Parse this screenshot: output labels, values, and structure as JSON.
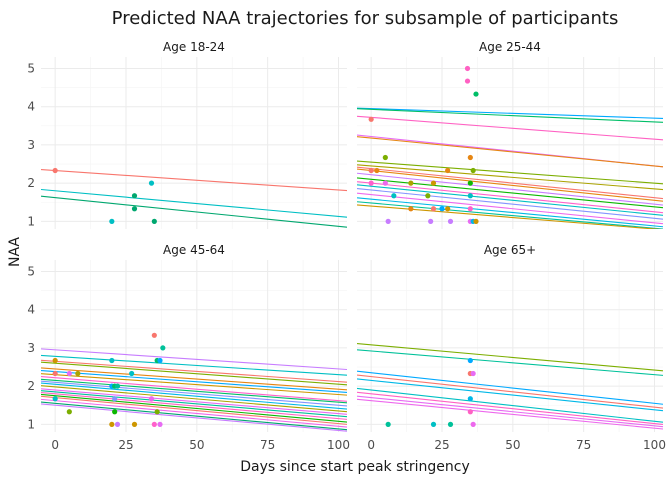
{
  "chart_data": {
    "type": "scatter",
    "title": "Predicted NAA trajectories for subsample of participants",
    "xlabel": "Days since start peak stringency",
    "ylabel": "NAA",
    "xlim": [
      -5,
      103
    ],
    "ylim": [
      0.8,
      5.3
    ],
    "x_ticks": [
      0,
      25,
      50,
      75,
      100
    ],
    "y_ticks": [
      1,
      2,
      3,
      4,
      5
    ],
    "grid": true,
    "facets": [
      {
        "label": "Age 18-24",
        "lines": [
          {
            "y0": 2.33,
            "y100": 1.82,
            "color": "#F8766D"
          },
          {
            "y0": 1.8,
            "y100": 1.13,
            "color": "#00BFC4"
          },
          {
            "y0": 1.62,
            "y100": 0.87,
            "color": "#00A76F"
          }
        ],
        "points": [
          {
            "x": 0,
            "y": 2.33,
            "color": "#F8766D"
          },
          {
            "x": 20,
            "y": 1.0,
            "color": "#00BFC4"
          },
          {
            "x": 28,
            "y": 1.67,
            "color": "#00A76F"
          },
          {
            "x": 28,
            "y": 1.33,
            "color": "#00A76F"
          },
          {
            "x": 34,
            "y": 2.0,
            "color": "#00BFC4"
          },
          {
            "x": 35,
            "y": 1.0,
            "color": "#00A76F"
          }
        ]
      },
      {
        "label": "Age 25-44",
        "lines": [
          {
            "y0": 3.95,
            "y100": 3.7,
            "color": "#00A9FF"
          },
          {
            "y0": 3.93,
            "y100": 3.6,
            "color": "#00BE67"
          },
          {
            "y0": 3.72,
            "y100": 3.15,
            "color": "#FF61C3"
          },
          {
            "y0": 3.22,
            "y100": 2.45,
            "color": "#E76BF3"
          },
          {
            "y0": 3.18,
            "y100": 2.45,
            "color": "#E68613"
          },
          {
            "y0": 2.55,
            "y100": 2.0,
            "color": "#7CAE00"
          },
          {
            "y0": 2.45,
            "y100": 1.85,
            "color": "#ABA300"
          },
          {
            "y0": 2.38,
            "y100": 1.62,
            "color": "#F8766D"
          },
          {
            "y0": 2.33,
            "y100": 1.55,
            "color": "#E68613"
          },
          {
            "y0": 2.22,
            "y100": 1.45,
            "color": "#C77CFF"
          },
          {
            "y0": 2.1,
            "y100": 1.38,
            "color": "#0CB702"
          },
          {
            "y0": 2.0,
            "y100": 1.25,
            "color": "#FF61CC"
          },
          {
            "y0": 1.92,
            "y100": 1.18,
            "color": "#00BFC4"
          },
          {
            "y0": 1.82,
            "y100": 1.08,
            "color": "#8494FF"
          },
          {
            "y0": 1.7,
            "y100": 0.96,
            "color": "#ED68ED"
          },
          {
            "y0": 1.58,
            "y100": 0.88,
            "color": "#00B8E7"
          },
          {
            "y0": 1.48,
            "y100": 0.82,
            "color": "#00C19A"
          },
          {
            "y0": 1.4,
            "y100": 0.8,
            "color": "#CD9600"
          }
        ],
        "points": [
          {
            "x": 0,
            "y": 3.67,
            "color": "#F8766D"
          },
          {
            "x": 0,
            "y": 2.33,
            "color": "#F8766D"
          },
          {
            "x": 0,
            "y": 2.0,
            "color": "#FF61CC"
          },
          {
            "x": 2,
            "y": 2.33,
            "color": "#E68613"
          },
          {
            "x": 5,
            "y": 2.67,
            "color": "#7CAE00"
          },
          {
            "x": 5,
            "y": 2.0,
            "color": "#ED68ED"
          },
          {
            "x": 6,
            "y": 1.0,
            "color": "#C77CFF"
          },
          {
            "x": 8,
            "y": 1.67,
            "color": "#00BFC4"
          },
          {
            "x": 14,
            "y": 2.0,
            "color": "#ABA300"
          },
          {
            "x": 14,
            "y": 1.33,
            "color": "#E68613"
          },
          {
            "x": 20,
            "y": 1.67,
            "color": "#7CAE00"
          },
          {
            "x": 21,
            "y": 1.0,
            "color": "#C77CFF"
          },
          {
            "x": 22,
            "y": 2.0,
            "color": "#CD9600"
          },
          {
            "x": 22,
            "y": 1.33,
            "color": "#F8766D"
          },
          {
            "x": 25,
            "y": 1.33,
            "color": "#00A9FF"
          },
          {
            "x": 27,
            "y": 2.33,
            "color": "#E68613"
          },
          {
            "x": 27,
            "y": 1.33,
            "color": "#CD9600"
          },
          {
            "x": 28,
            "y": 1.0,
            "color": "#C77CFF"
          },
          {
            "x": 34,
            "y": 4.67,
            "color": "#FF61C3"
          },
          {
            "x": 34,
            "y": 5.0,
            "color": "#FF61C3"
          },
          {
            "x": 35,
            "y": 2.67,
            "color": "#E68613"
          },
          {
            "x": 35,
            "y": 2.0,
            "color": "#0CB702"
          },
          {
            "x": 35,
            "y": 1.67,
            "color": "#00BFC4"
          },
          {
            "x": 35,
            "y": 1.33,
            "color": "#FF61CC"
          },
          {
            "x": 35,
            "y": 1.0,
            "color": "#E76BF3"
          },
          {
            "x": 36,
            "y": 2.33,
            "color": "#7CAE00"
          },
          {
            "x": 36,
            "y": 1.0,
            "color": "#00B8E7"
          },
          {
            "x": 37,
            "y": 4.33,
            "color": "#00BE67"
          },
          {
            "x": 37,
            "y": 1.0,
            "color": "#CD9600"
          }
        ]
      },
      {
        "label": "Age 45-64",
        "lines": [
          {
            "y0": 2.95,
            "y100": 2.45,
            "color": "#C77CFF"
          },
          {
            "y0": 2.78,
            "y100": 2.3,
            "color": "#00BFC4"
          },
          {
            "y0": 2.65,
            "y100": 2.12,
            "color": "#F8766D"
          },
          {
            "y0": 2.6,
            "y100": 2.05,
            "color": "#7CAE00"
          },
          {
            "y0": 2.45,
            "y100": 1.92,
            "color": "#E68613"
          },
          {
            "y0": 2.38,
            "y100": 1.85,
            "color": "#00A9FF"
          },
          {
            "y0": 2.3,
            "y100": 1.78,
            "color": "#CD9600"
          },
          {
            "y0": 2.22,
            "y100": 1.62,
            "color": "#FF61CC"
          },
          {
            "y0": 2.15,
            "y100": 1.58,
            "color": "#00BE67"
          },
          {
            "y0": 2.1,
            "y100": 1.5,
            "color": "#8494FF"
          },
          {
            "y0": 2.05,
            "y100": 1.42,
            "color": "#00B8E7"
          },
          {
            "y0": 1.98,
            "y100": 1.35,
            "color": "#ABA300"
          },
          {
            "y0": 1.9,
            "y100": 1.28,
            "color": "#E76BF3"
          },
          {
            "y0": 1.85,
            "y100": 1.22,
            "color": "#00C19A"
          },
          {
            "y0": 1.8,
            "y100": 1.15,
            "color": "#FF61C3"
          },
          {
            "y0": 1.75,
            "y100": 1.08,
            "color": "#0CB702"
          },
          {
            "y0": 1.7,
            "y100": 1.02,
            "color": "#F8766D"
          },
          {
            "y0": 1.62,
            "y100": 0.95,
            "color": "#ED68ED"
          },
          {
            "y0": 1.55,
            "y100": 0.88,
            "color": "#00A76F"
          },
          {
            "y0": 1.5,
            "y100": 0.84,
            "color": "#C77CFF"
          }
        ],
        "points": [
          {
            "x": 0,
            "y": 2.67,
            "color": "#CD9600"
          },
          {
            "x": 0,
            "y": 2.33,
            "color": "#F8766D"
          },
          {
            "x": 0,
            "y": 1.67,
            "color": "#00BFC4"
          },
          {
            "x": 5,
            "y": 2.33,
            "color": "#E76BF3"
          },
          {
            "x": 5,
            "y": 1.33,
            "color": "#7CAE00"
          },
          {
            "x": 8,
            "y": 2.33,
            "color": "#ABA300"
          },
          {
            "x": 20,
            "y": 2.67,
            "color": "#00BFC4"
          },
          {
            "x": 20,
            "y": 2.0,
            "color": "#00A9FF"
          },
          {
            "x": 20,
            "y": 1.0,
            "color": "#CD9600"
          },
          {
            "x": 21,
            "y": 2.0,
            "color": "#00BE67"
          },
          {
            "x": 21,
            "y": 1.67,
            "color": "#8494FF"
          },
          {
            "x": 21,
            "y": 1.33,
            "color": "#0CB702"
          },
          {
            "x": 22,
            "y": 2.0,
            "color": "#00C19A"
          },
          {
            "x": 22,
            "y": 1.0,
            "color": "#C77CFF"
          },
          {
            "x": 27,
            "y": 2.33,
            "color": "#00BFC4"
          },
          {
            "x": 28,
            "y": 1.0,
            "color": "#CD9600"
          },
          {
            "x": 34,
            "y": 1.67,
            "color": "#ED68ED"
          },
          {
            "x": 35,
            "y": 3.33,
            "color": "#F8766D"
          },
          {
            "x": 35,
            "y": 1.0,
            "color": "#FF61CC"
          },
          {
            "x": 36,
            "y": 2.67,
            "color": "#00BE67"
          },
          {
            "x": 36,
            "y": 1.33,
            "color": "#7CAE00"
          },
          {
            "x": 37,
            "y": 2.67,
            "color": "#00A9FF"
          },
          {
            "x": 37,
            "y": 1.0,
            "color": "#E76BF3"
          },
          {
            "x": 38,
            "y": 3.0,
            "color": "#00C19A"
          }
        ]
      },
      {
        "label": "Age 65+",
        "lines": [
          {
            "y0": 3.08,
            "y100": 2.42,
            "color": "#7CAE00"
          },
          {
            "y0": 2.92,
            "y100": 2.3,
            "color": "#00C19A"
          },
          {
            "y0": 2.35,
            "y100": 1.55,
            "color": "#00A9FF"
          },
          {
            "y0": 2.25,
            "y100": 1.45,
            "color": "#F8766D"
          },
          {
            "y0": 2.15,
            "y100": 1.38,
            "color": "#00B8E7"
          },
          {
            "y0": 1.9,
            "y100": 1.08,
            "color": "#00BFC4"
          },
          {
            "y0": 1.8,
            "y100": 1.02,
            "color": "#FF61C3"
          },
          {
            "y0": 1.7,
            "y100": 0.96,
            "color": "#E76BF3"
          },
          {
            "y0": 1.62,
            "y100": 0.9,
            "color": "#ED68ED"
          }
        ],
        "points": [
          {
            "x": 6,
            "y": 1.0,
            "color": "#00C19A"
          },
          {
            "x": 22,
            "y": 1.0,
            "color": "#00BFC4"
          },
          {
            "x": 28,
            "y": 1.0,
            "color": "#00C19A"
          },
          {
            "x": 35,
            "y": 2.67,
            "color": "#00A9FF"
          },
          {
            "x": 35,
            "y": 2.33,
            "color": "#F8766D"
          },
          {
            "x": 35,
            "y": 1.67,
            "color": "#00B8E7"
          },
          {
            "x": 35,
            "y": 1.33,
            "color": "#FF61C3"
          },
          {
            "x": 36,
            "y": 2.33,
            "color": "#E76BF3"
          },
          {
            "x": 36,
            "y": 1.0,
            "color": "#ED68ED"
          }
        ]
      }
    ]
  }
}
